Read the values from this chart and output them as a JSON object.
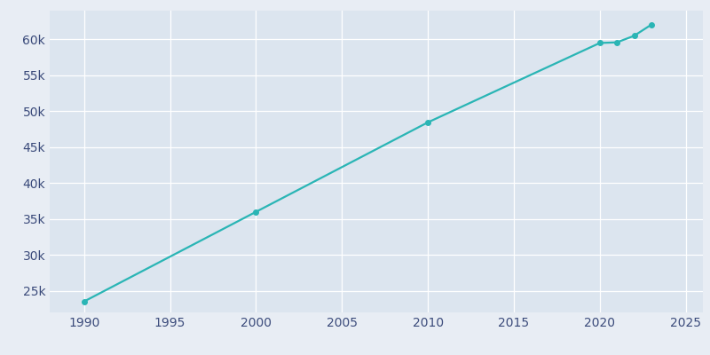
{
  "years": [
    1990,
    2000,
    2010,
    2020,
    2021,
    2022,
    2023
  ],
  "population": [
    23523,
    35997,
    48452,
    59498,
    59588,
    60503,
    62050
  ],
  "line_color": "#2ab5b5",
  "marker_color": "#2ab5b5",
  "figure_bg_color": "#e8edf4",
  "plot_bg_color": "#dce5ef",
  "text_color": "#3a4a7a",
  "xlim": [
    1988,
    2026
  ],
  "ylim": [
    22000,
    64000
  ],
  "xticks": [
    1990,
    1995,
    2000,
    2005,
    2010,
    2015,
    2020,
    2025
  ],
  "yticks": [
    25000,
    30000,
    35000,
    40000,
    45000,
    50000,
    55000,
    60000
  ],
  "line_width": 1.6,
  "marker_size": 4
}
